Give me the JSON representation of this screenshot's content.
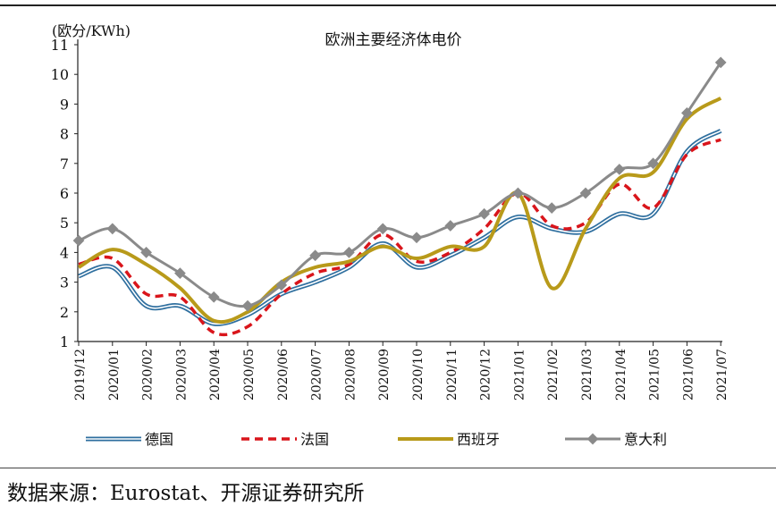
{
  "chart_data": {
    "type": "line",
    "title": "欧洲主要经济体电价",
    "unit_label": "(欧分/KWh)",
    "categories": [
      "2019/12",
      "2020/01",
      "2020/02",
      "2020/03",
      "2020/04",
      "2020/05",
      "2020/06",
      "2020/07",
      "2020/08",
      "2020/09",
      "2020/10",
      "2020/11",
      "2020/12",
      "2021/01",
      "2021/02",
      "2021/03",
      "2021/04",
      "2021/05",
      "2021/06",
      "2021/07"
    ],
    "ylim": [
      1,
      11
    ],
    "yticks": [
      "1",
      "2",
      "3",
      "4",
      "5",
      "6",
      "7",
      "8",
      "9",
      "10",
      "11"
    ],
    "legend_position": "bottom",
    "series": [
      {
        "name": "德国",
        "color": "#2f6f9f",
        "style": "double",
        "values": [
          3.2,
          3.5,
          2.2,
          2.2,
          1.6,
          1.9,
          2.6,
          3.0,
          3.5,
          4.3,
          3.5,
          3.9,
          4.5,
          5.2,
          4.8,
          4.7,
          5.3,
          5.3,
          7.4,
          8.1
        ]
      },
      {
        "name": "法国",
        "color": "#d9151b",
        "style": "dashed",
        "values": [
          3.6,
          3.8,
          2.6,
          2.5,
          1.3,
          1.5,
          2.6,
          3.3,
          3.6,
          4.6,
          3.7,
          4.0,
          4.8,
          6.0,
          4.9,
          5.0,
          6.3,
          5.5,
          7.3,
          7.8
        ]
      },
      {
        "name": "西班牙",
        "color": "#b89a1a",
        "style": "solid",
        "values": [
          3.5,
          4.1,
          3.6,
          2.8,
          1.7,
          2.0,
          3.0,
          3.5,
          3.7,
          4.2,
          3.8,
          4.2,
          4.2,
          6.0,
          2.8,
          4.8,
          6.5,
          6.7,
          8.5,
          9.2
        ]
      },
      {
        "name": "意大利",
        "color": "#8a8a8a",
        "style": "markers",
        "values": [
          4.4,
          4.8,
          4.0,
          3.3,
          2.5,
          2.2,
          2.9,
          3.9,
          4.0,
          4.8,
          4.5,
          4.9,
          5.3,
          6.0,
          5.5,
          6.0,
          6.8,
          7.0,
          8.7,
          10.4
        ]
      }
    ]
  },
  "source_note": "数据来源：Eurostat、开源证券研究所"
}
